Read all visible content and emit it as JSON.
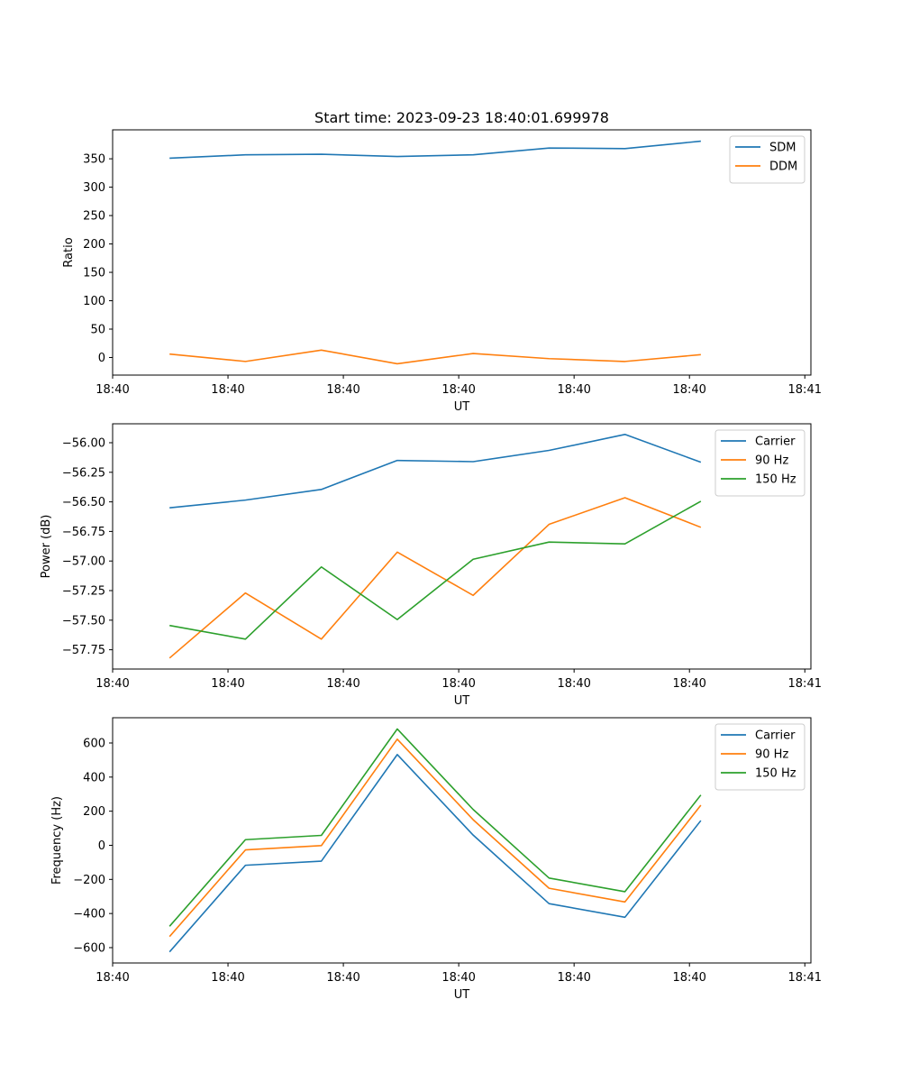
{
  "figure_title": "Start time: 2023-09-23 18:40:01.699978",
  "chart_data": [
    {
      "type": "line",
      "title": "Start time: 2023-09-23 18:40:01.699978",
      "xlabel": "UT",
      "ylabel": "Ratio",
      "x": [
        0,
        1,
        2,
        3,
        4,
        5,
        6,
        7
      ],
      "xlim": [
        -0.75,
        8.45
      ],
      "ylim": [
        -31,
        401
      ],
      "x_ticks": [
        {
          "x": -0.75,
          "label": "18:40"
        },
        {
          "x": 0.77,
          "label": "18:40"
        },
        {
          "x": 2.29,
          "label": "18:40"
        },
        {
          "x": 3.81,
          "label": "18:40"
        },
        {
          "x": 5.33,
          "label": "18:40"
        },
        {
          "x": 6.85,
          "label": "18:40"
        },
        {
          "x": 8.37,
          "label": "18:41"
        }
      ],
      "y_ticks": [
        {
          "y": 0,
          "label": "0"
        },
        {
          "y": 50,
          "label": "50"
        },
        {
          "y": 100,
          "label": "100"
        },
        {
          "y": 150,
          "label": "150"
        },
        {
          "y": 200,
          "label": "200"
        },
        {
          "y": 250,
          "label": "250"
        },
        {
          "y": 300,
          "label": "300"
        },
        {
          "y": 350,
          "label": "350"
        }
      ],
      "legend": "top-right",
      "series": [
        {
          "name": "SDM",
          "color": "#1f77b4",
          "values": [
            351,
            357,
            358,
            354,
            357,
            369,
            368,
            381
          ]
        },
        {
          "name": "DDM",
          "color": "#ff7f0e",
          "values": [
            6,
            -7,
            13,
            -11,
            7,
            -2,
            -7,
            5
          ]
        }
      ]
    },
    {
      "type": "line",
      "title": "",
      "xlabel": "UT",
      "ylabel": "Power (dB)",
      "x": [
        0,
        1,
        2,
        3,
        4,
        5,
        6,
        7
      ],
      "xlim": [
        -0.75,
        8.45
      ],
      "ylim": [
        -57.913,
        -55.84
      ],
      "x_ticks": [
        {
          "x": -0.75,
          "label": "18:40"
        },
        {
          "x": 0.77,
          "label": "18:40"
        },
        {
          "x": 2.29,
          "label": "18:40"
        },
        {
          "x": 3.81,
          "label": "18:40"
        },
        {
          "x": 5.33,
          "label": "18:40"
        },
        {
          "x": 6.85,
          "label": "18:40"
        },
        {
          "x": 8.37,
          "label": "18:41"
        }
      ],
      "y_ticks": [
        {
          "y": -57.75,
          "label": "−57.75"
        },
        {
          "y": -57.5,
          "label": "−57.50"
        },
        {
          "y": -57.25,
          "label": "−57.25"
        },
        {
          "y": -57.0,
          "label": "−57.00"
        },
        {
          "y": -56.75,
          "label": "−56.75"
        },
        {
          "y": -56.5,
          "label": "−56.50"
        },
        {
          "y": -56.25,
          "label": "−56.25"
        },
        {
          "y": -56.0,
          "label": "−56.00"
        }
      ],
      "legend": "top-right",
      "series": [
        {
          "name": "Carrier",
          "color": "#1f77b4",
          "values": [
            -56.55,
            -56.485,
            -56.395,
            -56.15,
            -56.16,
            -56.065,
            -55.93,
            -56.165
          ]
        },
        {
          "name": "90 Hz",
          "color": "#ff7f0e",
          "values": [
            -57.82,
            -57.27,
            -57.66,
            -56.925,
            -57.29,
            -56.69,
            -56.465,
            -56.715
          ]
        },
        {
          "name": "150 Hz",
          "color": "#2ca02c",
          "values": [
            -57.545,
            -57.66,
            -57.05,
            -57.495,
            -56.985,
            -56.84,
            -56.855,
            -56.495
          ]
        }
      ]
    },
    {
      "type": "line",
      "title": "",
      "xlabel": "UT",
      "ylabel": "Frequency (Hz)",
      "x": [
        0,
        1,
        2,
        3,
        4,
        5,
        6,
        7
      ],
      "xlim": [
        -0.75,
        8.45
      ],
      "ylim": [
        -690,
        748
      ],
      "x_ticks": [
        {
          "x": -0.75,
          "label": "18:40"
        },
        {
          "x": 0.77,
          "label": "18:40"
        },
        {
          "x": 2.29,
          "label": "18:40"
        },
        {
          "x": 3.81,
          "label": "18:40"
        },
        {
          "x": 5.33,
          "label": "18:40"
        },
        {
          "x": 6.85,
          "label": "18:40"
        },
        {
          "x": 8.37,
          "label": "18:41"
        }
      ],
      "y_ticks": [
        {
          "y": -600,
          "label": "−600"
        },
        {
          "y": -400,
          "label": "−400"
        },
        {
          "y": -200,
          "label": "−200"
        },
        {
          "y": 0,
          "label": "0"
        },
        {
          "y": 200,
          "label": "200"
        },
        {
          "y": 400,
          "label": "400"
        },
        {
          "y": 600,
          "label": "600"
        }
      ],
      "legend": "top-right",
      "series": [
        {
          "name": "Carrier",
          "color": "#1f77b4",
          "values": [
            -625,
            -117,
            -93,
            532,
            60,
            -342,
            -422,
            145
          ]
        },
        {
          "name": "90 Hz",
          "color": "#ff7f0e",
          "values": [
            -535,
            -27,
            -2,
            622,
            150,
            -252,
            -332,
            235
          ]
        },
        {
          "name": "150 Hz",
          "color": "#2ca02c",
          "values": [
            -475,
            33,
            58,
            682,
            210,
            -192,
            -272,
            295
          ]
        }
      ]
    }
  ]
}
